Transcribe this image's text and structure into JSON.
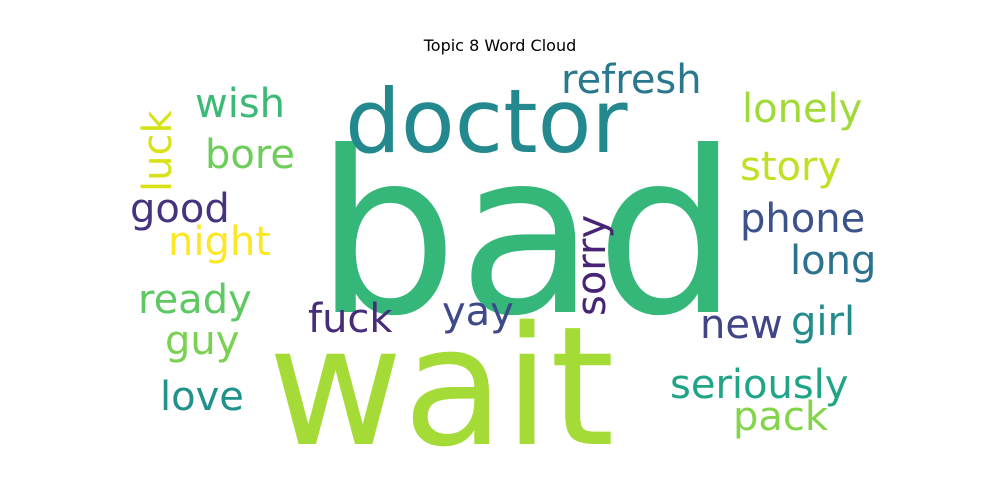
{
  "chart_data": {
    "type": "wordcloud",
    "title": "Topic 8 Word Cloud",
    "words": [
      {
        "text": "bad",
        "color": "#35b779",
        "rotate": false
      },
      {
        "text": "wait",
        "color": "#a5db36",
        "rotate": false
      },
      {
        "text": "doctor",
        "color": "#23898e",
        "rotate": false
      },
      {
        "text": "refresh",
        "color": "#2a788e",
        "rotate": false
      },
      {
        "text": "wish",
        "color": "#3aba76",
        "rotate": false
      },
      {
        "text": "luck",
        "color": "#d8e219",
        "rotate": true
      },
      {
        "text": "bore",
        "color": "#6ccd5a",
        "rotate": false
      },
      {
        "text": "lonely",
        "color": "#a0da39",
        "rotate": false
      },
      {
        "text": "story",
        "color": "#c2df23",
        "rotate": false
      },
      {
        "text": "good",
        "color": "#46327e",
        "rotate": false
      },
      {
        "text": "night",
        "color": "#fde725",
        "rotate": false
      },
      {
        "text": "sorry",
        "color": "#482475",
        "rotate": true
      },
      {
        "text": "phone",
        "color": "#3b528b",
        "rotate": false
      },
      {
        "text": "long",
        "color": "#2c728e",
        "rotate": false
      },
      {
        "text": "ready",
        "color": "#5ec962",
        "rotate": false
      },
      {
        "text": "fuck",
        "color": "#472c7a",
        "rotate": false
      },
      {
        "text": "yay",
        "color": "#3e4989",
        "rotate": false
      },
      {
        "text": "new",
        "color": "#414487",
        "rotate": false
      },
      {
        "text": "girl",
        "color": "#228c8d",
        "rotate": false
      },
      {
        "text": "guy",
        "color": "#7ad151",
        "rotate": false
      },
      {
        "text": "seriously",
        "color": "#20a486",
        "rotate": false
      },
      {
        "text": "love",
        "color": "#21918c",
        "rotate": false
      },
      {
        "text": "pack",
        "color": "#84d44b",
        "rotate": false
      }
    ]
  }
}
